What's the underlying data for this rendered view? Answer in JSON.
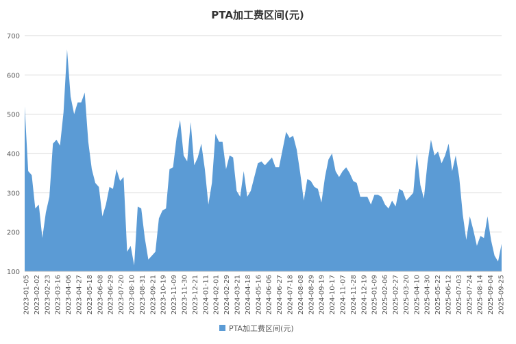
{
  "chart_data": {
    "type": "area",
    "title": "PTA加工费区间(元)",
    "xlabel": "",
    "ylabel": "",
    "ylim": [
      100,
      700
    ],
    "yticks": [
      100,
      200,
      300,
      400,
      500,
      600,
      700
    ],
    "grid": true,
    "legend_position": "bottom",
    "color": "#5b9bd5",
    "x_tick_labels": [
      "2023-01-05",
      "2023-02-02",
      "2023-02-23",
      "2023-03-16",
      "2023-04-06",
      "2023-04-27",
      "2023-05-18",
      "2023-06-08",
      "2023-06-29",
      "2023-07-20",
      "2023-08-10",
      "2023-08-31",
      "2023-09-21",
      "2023-10-19",
      "2023-11-09",
      "2023-11-30",
      "2023-12-21",
      "2024-01-11",
      "2024-02-01",
      "2024-02-29",
      "2024-03-21",
      "2024-04-18",
      "2024-05-16",
      "2024-06-06",
      "2024-06-27",
      "2024-07-18",
      "2024-08-08",
      "2024-08-29",
      "2024-09-19",
      "2024-10-17",
      "2024-11-07",
      "2024-11-28",
      "2024-12-19",
      "2025-01-09",
      "2025-02-06",
      "2025-02-27",
      "2025-03-20",
      "2025-04-10",
      "2025-04-30",
      "2025-05-22",
      "2025-06-12",
      "2025-07-03",
      "2025-07-24",
      "2025-08-14",
      "2025-09-04",
      "2025-09-25"
    ],
    "series": [
      {
        "name": "PTA加工费区间(元)",
        "values": [
          520,
          355,
          345,
          260,
          270,
          185,
          250,
          290,
          425,
          435,
          420,
          505,
          665,
          545,
          500,
          530,
          530,
          555,
          430,
          360,
          325,
          315,
          240,
          270,
          315,
          310,
          360,
          330,
          340,
          150,
          165,
          115,
          265,
          260,
          185,
          130,
          140,
          150,
          235,
          255,
          260,
          360,
          365,
          440,
          485,
          395,
          380,
          480,
          370,
          390,
          425,
          360,
          270,
          325,
          450,
          430,
          430,
          360,
          395,
          390,
          305,
          290,
          355,
          290,
          305,
          340,
          375,
          380,
          370,
          380,
          390,
          365,
          365,
          410,
          455,
          440,
          445,
          410,
          350,
          280,
          335,
          330,
          315,
          310,
          275,
          340,
          385,
          400,
          355,
          340,
          355,
          365,
          350,
          330,
          325,
          290,
          290,
          290,
          270,
          295,
          295,
          290,
          270,
          260,
          280,
          265,
          310,
          305,
          280,
          290,
          300,
          400,
          320,
          285,
          375,
          435,
          395,
          405,
          375,
          395,
          425,
          355,
          395,
          340,
          245,
          180,
          240,
          205,
          165,
          190,
          185,
          240,
          180,
          140,
          125,
          170
        ]
      }
    ]
  }
}
